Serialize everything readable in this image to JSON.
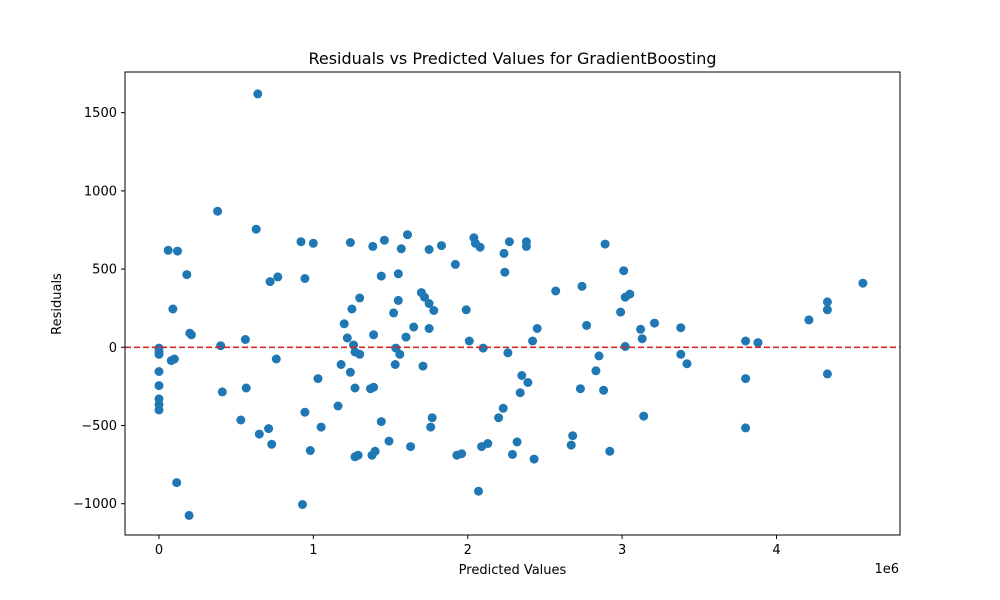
{
  "chart_data": {
    "type": "scatter",
    "title": "Residuals vs Predicted Values for GradientBoosting",
    "xlabel": "Predicted Values",
    "ylabel": "Residuals",
    "x_offset_text": "1e6",
    "xlim": [
      -220000,
      4800000
    ],
    "ylim": [
      -1200,
      1760
    ],
    "x_ticks": [
      0,
      1000000,
      2000000,
      3000000,
      4000000
    ],
    "x_tick_labels": [
      "0",
      "1",
      "2",
      "3",
      "4"
    ],
    "y_ticks": [
      -1000,
      -500,
      0,
      500,
      1000,
      1500
    ],
    "y_tick_labels": [
      "−1000",
      "−500",
      "0",
      "500",
      "1000",
      "1500"
    ],
    "grid": false,
    "point_color": "#1f77b4",
    "reference_line": {
      "y": 0,
      "color": "#d62728",
      "style": "dashed"
    },
    "points": [
      [
        0,
        -5
      ],
      [
        0,
        -30
      ],
      [
        0,
        -45
      ],
      [
        0,
        -155
      ],
      [
        0,
        -245
      ],
      [
        0,
        -330
      ],
      [
        0,
        -365
      ],
      [
        0,
        -400
      ],
      [
        60000,
        620
      ],
      [
        80000,
        -85
      ],
      [
        100000,
        -75
      ],
      [
        90000,
        245
      ],
      [
        120000,
        615
      ],
      [
        115000,
        -865
      ],
      [
        180000,
        465
      ],
      [
        200000,
        90
      ],
      [
        210000,
        80
      ],
      [
        195000,
        -1075
      ],
      [
        380000,
        870
      ],
      [
        400000,
        10
      ],
      [
        410000,
        -285
      ],
      [
        530000,
        -465
      ],
      [
        560000,
        50
      ],
      [
        565000,
        -260
      ],
      [
        630000,
        755
      ],
      [
        640000,
        1620
      ],
      [
        650000,
        -555
      ],
      [
        710000,
        -520
      ],
      [
        720000,
        420
      ],
      [
        730000,
        -620
      ],
      [
        760000,
        -75
      ],
      [
        770000,
        450
      ],
      [
        920000,
        675
      ],
      [
        930000,
        -1005
      ],
      [
        945000,
        440
      ],
      [
        945000,
        -415
      ],
      [
        980000,
        -660
      ],
      [
        1000000,
        665
      ],
      [
        1030000,
        -200
      ],
      [
        1050000,
        -510
      ],
      [
        1160000,
        -375
      ],
      [
        1180000,
        -110
      ],
      [
        1200000,
        150
      ],
      [
        1220000,
        60
      ],
      [
        1240000,
        670
      ],
      [
        1240000,
        -160
      ],
      [
        1250000,
        245
      ],
      [
        1260000,
        15
      ],
      [
        1270000,
        -30
      ],
      [
        1270000,
        -260
      ],
      [
        1270000,
        -700
      ],
      [
        1290000,
        -690
      ],
      [
        1300000,
        -45
      ],
      [
        1300000,
        315
      ],
      [
        1370000,
        -265
      ],
      [
        1380000,
        -690
      ],
      [
        1385000,
        645
      ],
      [
        1390000,
        -255
      ],
      [
        1390000,
        80
      ],
      [
        1400000,
        -665
      ],
      [
        1440000,
        455
      ],
      [
        1440000,
        -475
      ],
      [
        1460000,
        685
      ],
      [
        1490000,
        -600
      ],
      [
        1520000,
        220
      ],
      [
        1530000,
        -110
      ],
      [
        1535000,
        -5
      ],
      [
        1550000,
        470
      ],
      [
        1550000,
        300
      ],
      [
        1560000,
        -45
      ],
      [
        1570000,
        630
      ],
      [
        1600000,
        65
      ],
      [
        1610000,
        720
      ],
      [
        1630000,
        -635
      ],
      [
        1650000,
        130
      ],
      [
        1700000,
        350
      ],
      [
        1710000,
        -120
      ],
      [
        1720000,
        320
      ],
      [
        1750000,
        625
      ],
      [
        1750000,
        120
      ],
      [
        1750000,
        280
      ],
      [
        1760000,
        -510
      ],
      [
        1770000,
        -450
      ],
      [
        1780000,
        235
      ],
      [
        1830000,
        650
      ],
      [
        1920000,
        530
      ],
      [
        1930000,
        -690
      ],
      [
        1960000,
        -680
      ],
      [
        1990000,
        240
      ],
      [
        2010000,
        40
      ],
      [
        2040000,
        700
      ],
      [
        2050000,
        665
      ],
      [
        2070000,
        -920
      ],
      [
        2080000,
        640
      ],
      [
        2090000,
        -635
      ],
      [
        2100000,
        -5
      ],
      [
        2130000,
        -615
      ],
      [
        2200000,
        -450
      ],
      [
        2230000,
        -390
      ],
      [
        2235000,
        600
      ],
      [
        2240000,
        480
      ],
      [
        2260000,
        -35
      ],
      [
        2270000,
        675
      ],
      [
        2290000,
        -685
      ],
      [
        2320000,
        -605
      ],
      [
        2340000,
        -290
      ],
      [
        2350000,
        -180
      ],
      [
        2380000,
        645
      ],
      [
        2380000,
        675
      ],
      [
        2390000,
        -225
      ],
      [
        2420000,
        40
      ],
      [
        2430000,
        -715
      ],
      [
        2450000,
        120
      ],
      [
        2570000,
        360
      ],
      [
        2670000,
        -625
      ],
      [
        2680000,
        -565
      ],
      [
        2730000,
        -265
      ],
      [
        2740000,
        390
      ],
      [
        2770000,
        140
      ],
      [
        2830000,
        -150
      ],
      [
        2850000,
        -55
      ],
      [
        2880000,
        -275
      ],
      [
        2890000,
        660
      ],
      [
        2920000,
        -665
      ],
      [
        2990000,
        225
      ],
      [
        3010000,
        490
      ],
      [
        3020000,
        320
      ],
      [
        3020000,
        5
      ],
      [
        3050000,
        340
      ],
      [
        3120000,
        115
      ],
      [
        3130000,
        55
      ],
      [
        3140000,
        -440
      ],
      [
        3210000,
        155
      ],
      [
        3380000,
        125
      ],
      [
        3380000,
        -45
      ],
      [
        3420000,
        -105
      ],
      [
        3800000,
        40
      ],
      [
        3800000,
        -200
      ],
      [
        3800000,
        -515
      ],
      [
        3880000,
        30
      ],
      [
        4210000,
        175
      ],
      [
        4330000,
        290
      ],
      [
        4330000,
        240
      ],
      [
        4330000,
        -170
      ],
      [
        4560000,
        410
      ]
    ]
  }
}
